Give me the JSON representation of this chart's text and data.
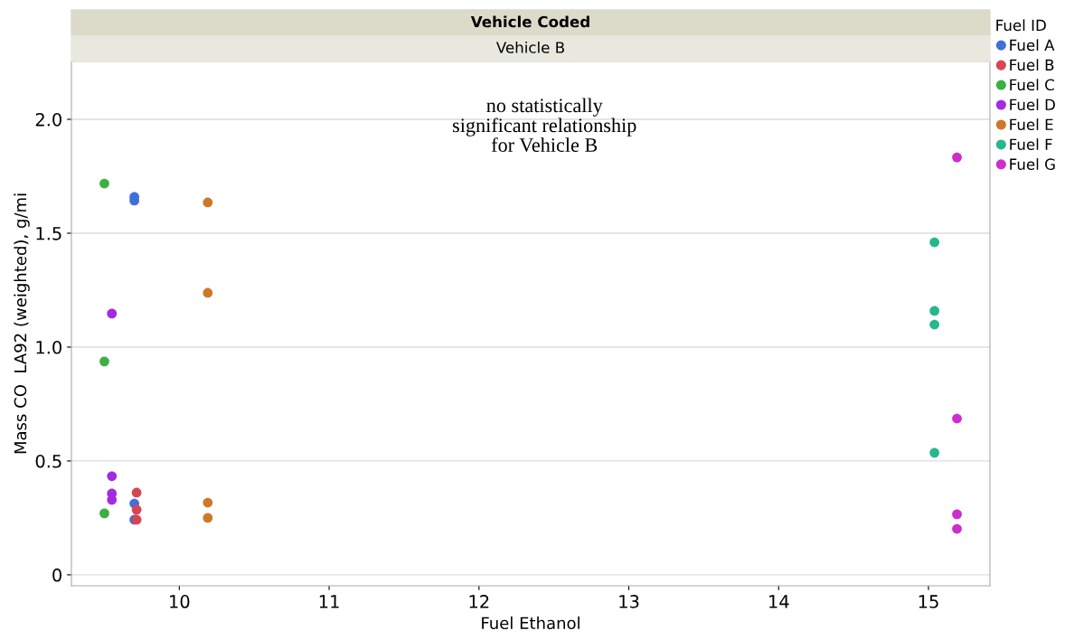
{
  "chart_data": {
    "type": "scatter",
    "title": "Vehicle Coded",
    "subtitle": "Vehicle B",
    "xlabel": "Fuel Ethanol",
    "ylabel": "Mass CO  LA92 (weighted), g/mi",
    "legend_title": "Fuel ID",
    "annotations": [
      "no statistically\nsignificant relationship\nfor Vehicle B"
    ],
    "xlim": [
      9.28,
      15.41
    ],
    "xticks": [
      10,
      11,
      12,
      13,
      14,
      15
    ],
    "ylim": [
      -0.048,
      2.254
    ],
    "yticks": [
      0,
      0.5,
      {
        "value": 1,
        "label": "1.0"
      },
      1.5,
      {
        "value": 2,
        "label": "2.0"
      }
    ],
    "grid": "y",
    "legend": "right",
    "marker": "circle",
    "series": [
      {
        "name": "Fuel A",
        "color": "#3f6fdc",
        "x": [
          9.7,
          9.7,
          9.7,
          9.7
        ],
        "values": [
          1.659,
          1.643,
          0.313,
          0.242
        ]
      },
      {
        "name": "Fuel B",
        "color": "#d64550",
        "x": [
          9.715,
          9.715,
          9.715
        ],
        "values": [
          0.361,
          0.286,
          0.242
        ]
      },
      {
        "name": "Fuel C",
        "color": "#3cb043",
        "x": [
          9.5,
          9.5,
          9.5
        ],
        "values": [
          1.718,
          0.937,
          0.27
        ]
      },
      {
        "name": "Fuel D",
        "color": "#a32be0",
        "x": [
          9.55,
          9.55,
          9.55,
          9.55
        ],
        "values": [
          1.147,
          0.433,
          0.357,
          0.329
        ]
      },
      {
        "name": "Fuel E",
        "color": "#cc7a2a",
        "x": [
          10.19,
          10.19,
          10.19,
          10.19
        ],
        "values": [
          1.635,
          1.238,
          0.317,
          0.25
        ]
      },
      {
        "name": "Fuel F",
        "color": "#26b88c",
        "x": [
          15.04,
          15.04,
          15.04,
          15.04
        ],
        "values": [
          1.46,
          1.159,
          1.099,
          0.536
        ]
      },
      {
        "name": "Fuel G",
        "color": "#cc2ecc",
        "x": [
          15.19,
          15.19,
          15.19,
          15.19
        ],
        "values": [
          1.833,
          0.686,
          0.266,
          0.202
        ]
      }
    ]
  }
}
